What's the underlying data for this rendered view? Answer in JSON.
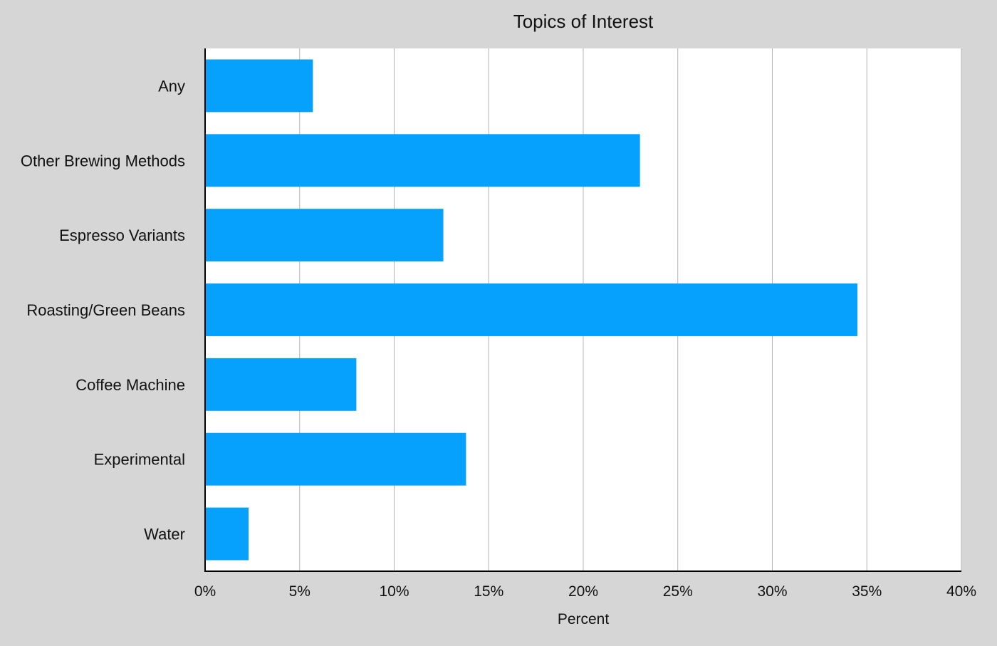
{
  "chart_data": {
    "type": "bar",
    "orientation": "horizontal",
    "title": "Topics of Interest",
    "xlabel": "Percent",
    "ylabel": "",
    "categories": [
      "Any",
      "Other Brewing Methods",
      "Espresso Variants",
      "Roasting/Green Beans",
      "Coffee Machine",
      "Experimental",
      "Water"
    ],
    "values": [
      5.7,
      23.0,
      12.6,
      34.5,
      8.0,
      13.8,
      2.3
    ],
    "xlim": [
      0,
      40
    ],
    "xticks": [
      0,
      5,
      10,
      15,
      20,
      25,
      30,
      35,
      40
    ],
    "xtick_labels": [
      "0%",
      "5%",
      "10%",
      "15%",
      "20%",
      "25%",
      "30%",
      "35%",
      "40%"
    ],
    "grid": "vertical",
    "legend": "none",
    "bar_color": "#05a1fd",
    "background_color": "#d6d6d6",
    "plot_background_color": "#ffffff"
  }
}
